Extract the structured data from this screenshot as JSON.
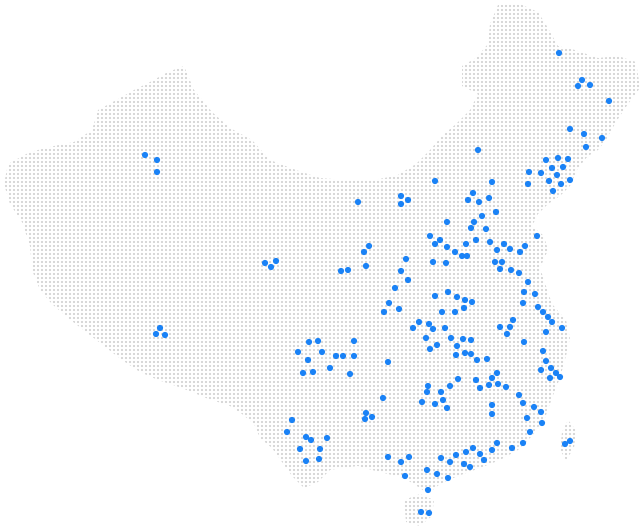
{
  "map": {
    "style": "dot-matrix country map with highlighted location markers",
    "country_dots_color": "#d4d4d4",
    "marker_color": "#1a82f6",
    "marker_count": 231
  }
}
